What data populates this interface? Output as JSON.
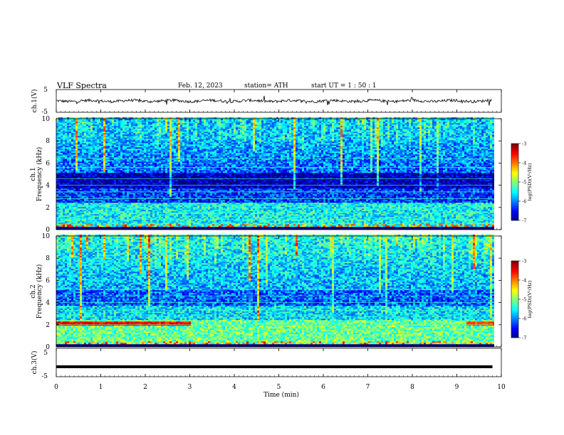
{
  "header": {
    "title": "VLF  Spectra",
    "date": "Feb. 12, 2023",
    "station": "station= ATH",
    "start": "start  UT  =    1  : 50 : 1"
  },
  "chart_data": [
    {
      "type": "line",
      "name": "ch1-waveform",
      "ylabel": "ch.1(V)",
      "ylim": [
        -5,
        5
      ],
      "yticks": [
        "5",
        "-5"
      ],
      "xlim": [
        0,
        10
      ],
      "baseline_value": 0
    },
    {
      "type": "heatmap",
      "name": "ch1-spectrogram",
      "ylabel_lines": [
        "ch.1",
        "Frequency  (kHz)"
      ],
      "ylim": [
        0,
        10
      ],
      "yticks": [
        "0",
        "2",
        "4",
        "6",
        "8",
        "10"
      ],
      "xlim": [
        0,
        10
      ],
      "data_end_x": 9.8,
      "colorbar": {
        "label": "log(PSD)(V²/Hz)",
        "range": [
          -7,
          -3
        ],
        "ticks": [
          "-3",
          "-4",
          "-5",
          "-6",
          "-7"
        ]
      }
    },
    {
      "type": "heatmap",
      "name": "ch2-spectrogram",
      "ylabel_lines": [
        "ch.2",
        "Frequency  (kHz)"
      ],
      "ylim": [
        0,
        10
      ],
      "yticks": [
        "0",
        "2",
        "4",
        "6",
        "8",
        "10"
      ],
      "xlim": [
        0,
        10
      ],
      "data_end_x": 9.8,
      "colorbar": {
        "label": "log(PSD)(V²/Hz)",
        "range": [
          -7,
          -3
        ],
        "ticks": [
          "-3",
          "-4",
          "-5",
          "-6",
          "-7"
        ]
      }
    },
    {
      "type": "line",
      "name": "ch3-waveform",
      "ylabel": "ch.3(V)",
      "ylim": [
        -5,
        5
      ],
      "yticks": [
        "5",
        "-5"
      ],
      "xlim": [
        0,
        10
      ],
      "baseline_value": -1.5,
      "data_end_x": 9.8
    }
  ],
  "xaxis": {
    "label": "Time  (min)",
    "ticks": [
      "0",
      "1",
      "2",
      "3",
      "4",
      "5",
      "6",
      "7",
      "8",
      "9",
      "10"
    ]
  }
}
